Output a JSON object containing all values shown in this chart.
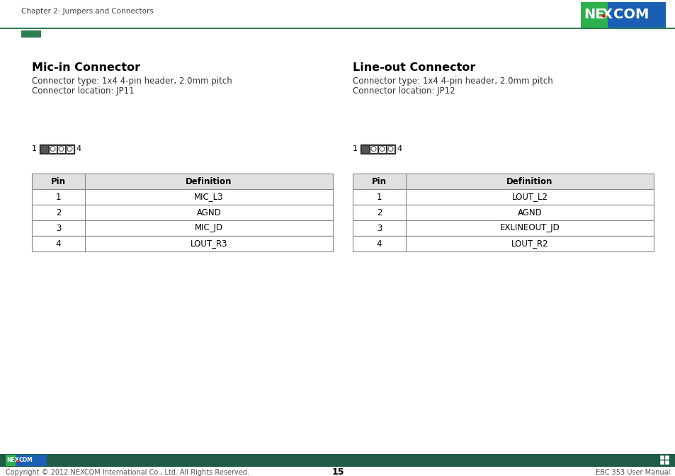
{
  "page_bg": "#ffffff",
  "header_text": "Chapter 2: Jumpers and Connectors",
  "header_text_color": "#444444",
  "left_title": "Mic-in Connector",
  "left_type_line": "Connector type: 1x4 4-pin header, 2.0mm pitch",
  "left_loc_line": "Connector location: JP11",
  "right_title": "Line-out Connector",
  "right_type_line": "Connector type: 1x4 4-pin header, 2.0mm pitch",
  "right_loc_line": "Connector location: JP12",
  "left_table_headers": [
    "Pin",
    "Definition"
  ],
  "left_table_rows": [
    [
      "1",
      "MIC_L3"
    ],
    [
      "2",
      "AGND"
    ],
    [
      "3",
      "MIC_JD"
    ],
    [
      "4",
      "LOUT_R3"
    ]
  ],
  "right_table_headers": [
    "Pin",
    "Definition"
  ],
  "right_table_rows": [
    [
      "1",
      "LOUT_L2"
    ],
    [
      "2",
      "AGND"
    ],
    [
      "3",
      "EXLINEOUT_JD"
    ],
    [
      "4",
      "LOUT_R2"
    ]
  ],
  "footer_bg": "#1e5c45",
  "footer_text": "Copyright © 2012 NEXCOM International Co., Ltd. All Rights Reserved.",
  "footer_page": "15",
  "footer_right": "EBC 353 User Manual",
  "header_bar_color": "#2e7d4f",
  "header_small_bar_color": "#2e7d4f",
  "table_header_bg": "#e0e0e0",
  "table_border_color": "#888888",
  "logo_green": "#2db04b",
  "logo_blue": "#1a5fb4"
}
